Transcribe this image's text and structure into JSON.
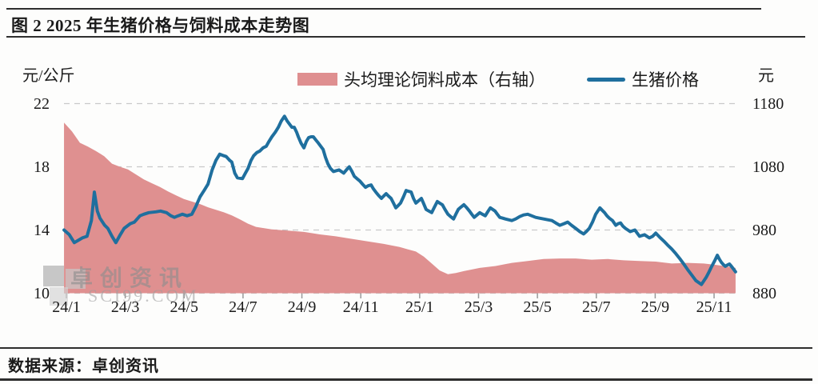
{
  "header": {
    "title": "图 2 2025 年生猪价格与饲料成本走势图"
  },
  "legend": [
    {
      "label": "头均理论饲料成本（右轴）",
      "color": "#df8f90",
      "type": "area"
    },
    {
      "label": "生猪价格",
      "color": "#1f6f9e",
      "type": "line"
    }
  ],
  "axes": {
    "left_unit": "元/公斤",
    "right_unit": "元",
    "left_ticks": [
      "22",
      "18",
      "14",
      "10"
    ],
    "right_ticks": [
      "1180",
      "1080",
      "980",
      "880"
    ],
    "x_ticks": [
      "24/1",
      "24/3",
      "24/5",
      "24/7",
      "24/9",
      "24/11",
      "25/1",
      "25/3",
      "25/5",
      "25/7",
      "25/9",
      "25/11"
    ]
  },
  "watermark": {
    "cn": "卓创资讯",
    "en": "SCI99.COM"
  },
  "footer": {
    "source": "数据来源：卓创资讯"
  },
  "colors": {
    "area": "#df9090",
    "line": "#1f6f9e",
    "grid": "#c9c9c9",
    "tick": "#999999",
    "text": "#1a1a1a"
  },
  "chart_data": {
    "type": "area+line",
    "title": "图 2 2025 年生猪价格与饲料成本走势图",
    "x_unit": "months since 2024-01 (0 = 24/1)",
    "x_tick_months": [
      0,
      2,
      4,
      6,
      8,
      10,
      12,
      14,
      16,
      18,
      20,
      22
    ],
    "x_tick_labels": [
      "24/1",
      "24/3",
      "24/5",
      "24/7",
      "24/9",
      "24/11",
      "25/1",
      "25/3",
      "25/5",
      "25/7",
      "25/9",
      "25/11"
    ],
    "left_axis": {
      "label": "元/公斤",
      "range": [
        10,
        22
      ],
      "ticks": [
        22,
        18,
        14,
        10
      ]
    },
    "right_axis": {
      "label": "元",
      "range": [
        880,
        1180
      ],
      "ticks": [
        1180,
        1080,
        980,
        880
      ]
    },
    "grid": "dashed horizontal",
    "legend_position": "top",
    "series": [
      {
        "name": "头均理论饲料成本（右轴）",
        "axis": "right",
        "type": "area",
        "color": "#df9090",
        "points": [
          [
            -0.08,
            1150
          ],
          [
            0.19,
            1136
          ],
          [
            0.46,
            1118
          ],
          [
            0.73,
            1112
          ],
          [
            1.0,
            1105
          ],
          [
            1.28,
            1097
          ],
          [
            1.55,
            1085
          ],
          [
            1.82,
            1080
          ],
          [
            2.09,
            1076
          ],
          [
            2.36,
            1068
          ],
          [
            2.63,
            1060
          ],
          [
            2.9,
            1054
          ],
          [
            3.18,
            1048
          ],
          [
            3.45,
            1041
          ],
          [
            3.72,
            1035
          ],
          [
            3.99,
            1029
          ],
          [
            4.26,
            1025
          ],
          [
            4.54,
            1021
          ],
          [
            4.81,
            1016
          ],
          [
            5.08,
            1012
          ],
          [
            5.35,
            1008
          ],
          [
            5.62,
            1003
          ],
          [
            5.89,
            997
          ],
          [
            6.17,
            990
          ],
          [
            6.44,
            985
          ],
          [
            6.98,
            981
          ],
          [
            7.52,
            979
          ],
          [
            8.07,
            977
          ],
          [
            8.61,
            973
          ],
          [
            9.15,
            970
          ],
          [
            9.7,
            966
          ],
          [
            10.24,
            962
          ],
          [
            10.78,
            958
          ],
          [
            11.32,
            953
          ],
          [
            11.87,
            946
          ],
          [
            12.14,
            938
          ],
          [
            12.41,
            927
          ],
          [
            12.68,
            916
          ],
          [
            12.96,
            910
          ],
          [
            13.23,
            912
          ],
          [
            13.5,
            915
          ],
          [
            14.04,
            920
          ],
          [
            14.58,
            923
          ],
          [
            15.13,
            928
          ],
          [
            15.67,
            931
          ],
          [
            16.21,
            934
          ],
          [
            16.76,
            935
          ],
          [
            17.3,
            935
          ],
          [
            17.84,
            933
          ],
          [
            18.39,
            934
          ],
          [
            18.93,
            932
          ],
          [
            19.47,
            931
          ],
          [
            20.02,
            930
          ],
          [
            20.56,
            927
          ],
          [
            21.1,
            928
          ],
          [
            21.65,
            927
          ],
          [
            22.19,
            924
          ],
          [
            22.73,
            920
          ]
        ]
      },
      {
        "name": "生猪价格",
        "axis": "left",
        "type": "line",
        "color": "#1f6f9e",
        "points": [
          [
            -0.08,
            14.0
          ],
          [
            0.1,
            13.7
          ],
          [
            0.27,
            13.2
          ],
          [
            0.45,
            13.4
          ],
          [
            0.54,
            13.5
          ],
          [
            0.7,
            13.6
          ],
          [
            0.85,
            14.6
          ],
          [
            0.95,
            16.4
          ],
          [
            1.05,
            15.2
          ],
          [
            1.14,
            14.75
          ],
          [
            1.3,
            14.3
          ],
          [
            1.41,
            14.1
          ],
          [
            1.55,
            13.6
          ],
          [
            1.68,
            13.2
          ],
          [
            1.83,
            13.7
          ],
          [
            1.96,
            14.1
          ],
          [
            2.17,
            14.4
          ],
          [
            2.31,
            14.5
          ],
          [
            2.5,
            14.9
          ],
          [
            2.63,
            15.0
          ],
          [
            2.8,
            15.1
          ],
          [
            3.04,
            15.15
          ],
          [
            3.2,
            15.2
          ],
          [
            3.4,
            15.1
          ],
          [
            3.55,
            14.9
          ],
          [
            3.67,
            14.8
          ],
          [
            3.8,
            14.9
          ],
          [
            3.94,
            15.0
          ],
          [
            4.1,
            14.9
          ],
          [
            4.26,
            15.0
          ],
          [
            4.4,
            15.5
          ],
          [
            4.54,
            16.1
          ],
          [
            4.68,
            16.5
          ],
          [
            4.81,
            16.9
          ],
          [
            4.95,
            17.8
          ],
          [
            5.08,
            18.4
          ],
          [
            5.21,
            18.8
          ],
          [
            5.35,
            18.7
          ],
          [
            5.43,
            18.65
          ],
          [
            5.55,
            18.4
          ],
          [
            5.62,
            18.3
          ],
          [
            5.72,
            17.6
          ],
          [
            5.81,
            17.3
          ],
          [
            5.98,
            17.25
          ],
          [
            6.08,
            17.6
          ],
          [
            6.17,
            17.9
          ],
          [
            6.27,
            18.4
          ],
          [
            6.36,
            18.7
          ],
          [
            6.47,
            18.9
          ],
          [
            6.57,
            19.0
          ],
          [
            6.68,
            19.2
          ],
          [
            6.79,
            19.3
          ],
          [
            6.88,
            19.6
          ],
          [
            6.98,
            19.9
          ],
          [
            7.1,
            20.2
          ],
          [
            7.2,
            20.5
          ],
          [
            7.3,
            20.9
          ],
          [
            7.41,
            21.2
          ],
          [
            7.5,
            20.9
          ],
          [
            7.58,
            20.7
          ],
          [
            7.66,
            20.5
          ],
          [
            7.74,
            20.5
          ],
          [
            7.82,
            20.2
          ],
          [
            7.88,
            19.9
          ],
          [
            7.97,
            19.5
          ],
          [
            8.07,
            19.2
          ],
          [
            8.15,
            19.6
          ],
          [
            8.23,
            19.85
          ],
          [
            8.31,
            19.9
          ],
          [
            8.39,
            19.9
          ],
          [
            8.47,
            19.7
          ],
          [
            8.56,
            19.5
          ],
          [
            8.64,
            19.3
          ],
          [
            8.72,
            19.1
          ],
          [
            8.8,
            18.6
          ],
          [
            8.88,
            18.2
          ],
          [
            8.97,
            17.9
          ],
          [
            9.07,
            17.7
          ],
          [
            9.16,
            17.75
          ],
          [
            9.26,
            17.8
          ],
          [
            9.34,
            17.7
          ],
          [
            9.42,
            17.6
          ],
          [
            9.51,
            17.8
          ],
          [
            9.61,
            18.0
          ],
          [
            9.7,
            17.7
          ],
          [
            9.78,
            17.4
          ],
          [
            9.87,
            17.25
          ],
          [
            9.97,
            17.1
          ],
          [
            10.06,
            16.9
          ],
          [
            10.16,
            16.7
          ],
          [
            10.25,
            16.8
          ],
          [
            10.35,
            16.85
          ],
          [
            10.43,
            16.6
          ],
          [
            10.51,
            16.4
          ],
          [
            10.6,
            16.2
          ],
          [
            10.7,
            16.0
          ],
          [
            10.78,
            16.15
          ],
          [
            10.86,
            16.3
          ],
          [
            10.94,
            16.15
          ],
          [
            11.03,
            16.0
          ],
          [
            11.11,
            15.7
          ],
          [
            11.19,
            15.4
          ],
          [
            11.27,
            15.55
          ],
          [
            11.35,
            15.7
          ],
          [
            11.45,
            16.1
          ],
          [
            11.54,
            16.5
          ],
          [
            11.62,
            16.45
          ],
          [
            11.71,
            16.4
          ],
          [
            11.79,
            16.0
          ],
          [
            11.87,
            15.7
          ],
          [
            11.96,
            15.85
          ],
          [
            12.06,
            16.0
          ],
          [
            12.14,
            15.65
          ],
          [
            12.22,
            15.3
          ],
          [
            12.31,
            15.2
          ],
          [
            12.41,
            15.1
          ],
          [
            12.5,
            15.45
          ],
          [
            12.6,
            15.8
          ],
          [
            12.68,
            15.7
          ],
          [
            12.77,
            15.6
          ],
          [
            12.86,
            15.3
          ],
          [
            12.96,
            15.0
          ],
          [
            13.05,
            14.85
          ],
          [
            13.15,
            14.7
          ],
          [
            13.23,
            15.0
          ],
          [
            13.31,
            15.3
          ],
          [
            13.4,
            15.45
          ],
          [
            13.5,
            15.6
          ],
          [
            13.6,
            15.4
          ],
          [
            13.69,
            15.2
          ],
          [
            13.77,
            15.0
          ],
          [
            13.85,
            14.8
          ],
          [
            13.95,
            14.95
          ],
          [
            14.04,
            15.1
          ],
          [
            14.13,
            15.0
          ],
          [
            14.23,
            14.9
          ],
          [
            14.31,
            15.15
          ],
          [
            14.4,
            15.4
          ],
          [
            14.48,
            15.3
          ],
          [
            14.56,
            15.2
          ],
          [
            14.64,
            15.0
          ],
          [
            14.72,
            14.8
          ],
          [
            14.82,
            14.75
          ],
          [
            14.91,
            14.7
          ],
          [
            15.02,
            14.65
          ],
          [
            15.13,
            14.6
          ],
          [
            15.26,
            14.7
          ],
          [
            15.4,
            14.85
          ],
          [
            15.53,
            14.95
          ],
          [
            15.67,
            15.0
          ],
          [
            15.8,
            14.9
          ],
          [
            15.94,
            14.8
          ],
          [
            16.07,
            14.75
          ],
          [
            16.21,
            14.7
          ],
          [
            16.35,
            14.65
          ],
          [
            16.49,
            14.6
          ],
          [
            16.62,
            14.45
          ],
          [
            16.76,
            14.3
          ],
          [
            16.9,
            14.4
          ],
          [
            17.03,
            14.5
          ],
          [
            17.16,
            14.3
          ],
          [
            17.3,
            14.1
          ],
          [
            17.44,
            13.9
          ],
          [
            17.57,
            13.75
          ],
          [
            17.66,
            13.9
          ],
          [
            17.76,
            14.1
          ],
          [
            17.87,
            14.5
          ],
          [
            17.98,
            15.0
          ],
          [
            18.12,
            15.4
          ],
          [
            18.2,
            15.25
          ],
          [
            18.28,
            15.1
          ],
          [
            18.36,
            14.9
          ],
          [
            18.44,
            14.75
          ],
          [
            18.55,
            14.6
          ],
          [
            18.66,
            14.3
          ],
          [
            18.74,
            14.4
          ],
          [
            18.82,
            14.45
          ],
          [
            18.9,
            14.25
          ],
          [
            18.99,
            14.1
          ],
          [
            19.07,
            14.0
          ],
          [
            19.15,
            13.9
          ],
          [
            19.23,
            13.95
          ],
          [
            19.31,
            14.0
          ],
          [
            19.39,
            13.8
          ],
          [
            19.47,
            13.6
          ],
          [
            19.55,
            13.65
          ],
          [
            19.64,
            13.7
          ],
          [
            19.72,
            13.6
          ],
          [
            19.8,
            13.5
          ],
          [
            19.91,
            13.6
          ],
          [
            20.02,
            13.8
          ],
          [
            20.15,
            13.55
          ],
          [
            20.29,
            13.3
          ],
          [
            20.42,
            13.05
          ],
          [
            20.56,
            12.8
          ],
          [
            20.7,
            12.5
          ],
          [
            20.83,
            12.2
          ],
          [
            20.97,
            11.85
          ],
          [
            21.1,
            11.5
          ],
          [
            21.24,
            11.15
          ],
          [
            21.38,
            10.8
          ],
          [
            21.57,
            10.55
          ],
          [
            21.73,
            11.0
          ],
          [
            21.83,
            11.35
          ],
          [
            21.92,
            11.7
          ],
          [
            22.02,
            12.05
          ],
          [
            22.11,
            12.4
          ],
          [
            22.18,
            12.15
          ],
          [
            22.25,
            11.95
          ],
          [
            22.32,
            11.8
          ],
          [
            22.38,
            11.7
          ],
          [
            22.45,
            11.78
          ],
          [
            22.52,
            11.85
          ],
          [
            22.58,
            11.72
          ],
          [
            22.65,
            11.55
          ],
          [
            22.73,
            11.35
          ]
        ]
      }
    ]
  }
}
